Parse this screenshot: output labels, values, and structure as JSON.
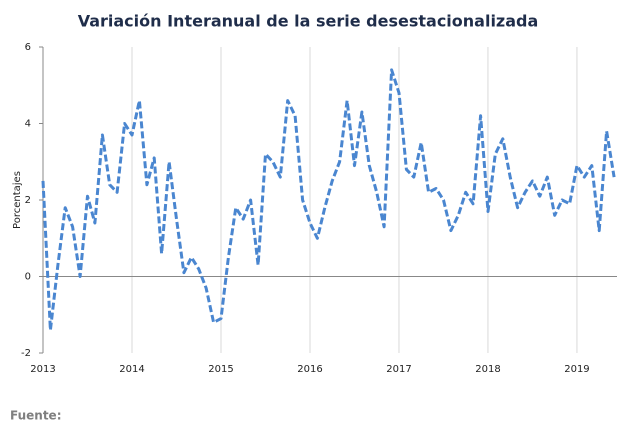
{
  "chart_data": {
    "type": "line",
    "title": "Variación Interanual de la serie desestacionalizada",
    "y_label": "Porcentajes",
    "footer": "Fuente:",
    "x": [
      2013,
      2013.083,
      2013.167,
      2013.25,
      2013.333,
      2013.417,
      2013.5,
      2013.583,
      2013.667,
      2013.75,
      2013.833,
      2013.917,
      2014,
      2014.083,
      2014.167,
      2014.25,
      2014.333,
      2014.417,
      2014.5,
      2014.583,
      2014.667,
      2014.75,
      2014.833,
      2014.917,
      2015,
      2015.083,
      2015.167,
      2015.25,
      2015.333,
      2015.417,
      2015.5,
      2015.583,
      2015.667,
      2015.75,
      2015.833,
      2015.917,
      2016,
      2016.083,
      2016.167,
      2016.25,
      2016.333,
      2016.417,
      2016.5,
      2016.583,
      2016.667,
      2016.75,
      2016.833,
      2016.917,
      2017,
      2017.083,
      2017.167,
      2017.25,
      2017.333,
      2017.417,
      2017.5,
      2017.583,
      2017.667,
      2017.75,
      2017.833,
      2017.917,
      2018,
      2018.083,
      2018.167,
      2018.25,
      2018.333,
      2018.417,
      2018.5,
      2018.583,
      2018.667,
      2018.75,
      2018.833,
      2018.917,
      2019,
      2019.083,
      2019.167,
      2019.25,
      2019.333,
      2019.417
    ],
    "series": [
      {
        "name": "Variación interanual",
        "color": "#4a86d0",
        "values": [
          2.5,
          -1.4,
          0.3,
          1.8,
          1.3,
          0.0,
          2.1,
          1.4,
          3.7,
          2.4,
          2.2,
          4.0,
          3.7,
          4.6,
          2.4,
          3.1,
          0.6,
          3.0,
          1.5,
          0.1,
          0.5,
          0.2,
          -0.3,
          -1.2,
          -1.1,
          0.5,
          1.8,
          1.5,
          2.0,
          0.3,
          3.2,
          3.0,
          2.6,
          4.6,
          4.2,
          2.0,
          1.4,
          1.0,
          1.8,
          2.5,
          3.0,
          4.6,
          2.9,
          4.3,
          2.9,
          2.2,
          1.3,
          5.4,
          4.8,
          2.8,
          2.6,
          3.5,
          2.2,
          2.3,
          2.0,
          1.2,
          1.6,
          2.2,
          1.9,
          4.2,
          1.7,
          3.2,
          3.6,
          2.6,
          1.8,
          2.2,
          2.5,
          2.1,
          2.6,
          1.6,
          2.0,
          1.9,
          2.9,
          2.6,
          2.9,
          1.2,
          3.8,
          2.6
        ]
      }
    ],
    "xlim": [
      2013,
      2019.45
    ],
    "xticks": [
      2013,
      2014,
      2015,
      2016,
      2017,
      2018,
      2019
    ],
    "ylim": [
      -2,
      6
    ],
    "yticks": [
      -2,
      0,
      2,
      4,
      6
    ],
    "grid": true
  }
}
